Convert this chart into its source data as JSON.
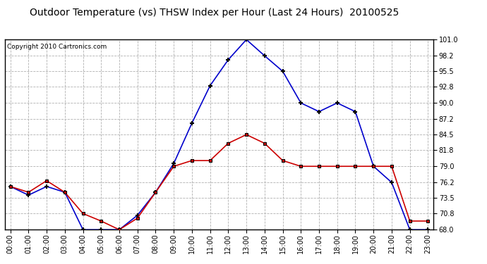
{
  "title": "Outdoor Temperature (vs) THSW Index per Hour (Last 24 Hours)  20100525",
  "copyright": "Copyright 2010 Cartronics.com",
  "hours": [
    "00:00",
    "01:00",
    "02:00",
    "03:00",
    "04:00",
    "05:00",
    "06:00",
    "07:00",
    "08:00",
    "09:00",
    "10:00",
    "11:00",
    "12:00",
    "13:00",
    "14:00",
    "15:00",
    "16:00",
    "17:00",
    "18:00",
    "19:00",
    "20:00",
    "21:00",
    "22:00",
    "23:00"
  ],
  "thsw": [
    75.5,
    74.0,
    75.5,
    74.5,
    68.0,
    68.0,
    68.0,
    70.5,
    74.5,
    79.5,
    86.5,
    93.0,
    97.5,
    101.0,
    98.2,
    95.5,
    90.0,
    88.5,
    90.0,
    88.5,
    79.0,
    76.2,
    68.0,
    68.0
  ],
  "temp": [
    75.5,
    74.5,
    76.5,
    74.5,
    70.8,
    69.5,
    68.0,
    70.0,
    74.5,
    79.0,
    80.0,
    80.0,
    83.0,
    84.5,
    83.0,
    80.0,
    79.0,
    79.0,
    79.0,
    79.0,
    79.0,
    79.0,
    69.5,
    69.5
  ],
  "ylim": [
    68.0,
    101.0
  ],
  "yticks": [
    68.0,
    70.8,
    73.5,
    76.2,
    79.0,
    81.8,
    84.5,
    87.2,
    90.0,
    92.8,
    95.5,
    98.2,
    101.0
  ],
  "thsw_color": "#0000cc",
  "temp_color": "#cc0000",
  "bg_color": "#ffffff",
  "plot_bg_color": "#ffffff",
  "grid_color": "#b0b0b0",
  "title_fontsize": 10,
  "copyright_fontsize": 6.5
}
